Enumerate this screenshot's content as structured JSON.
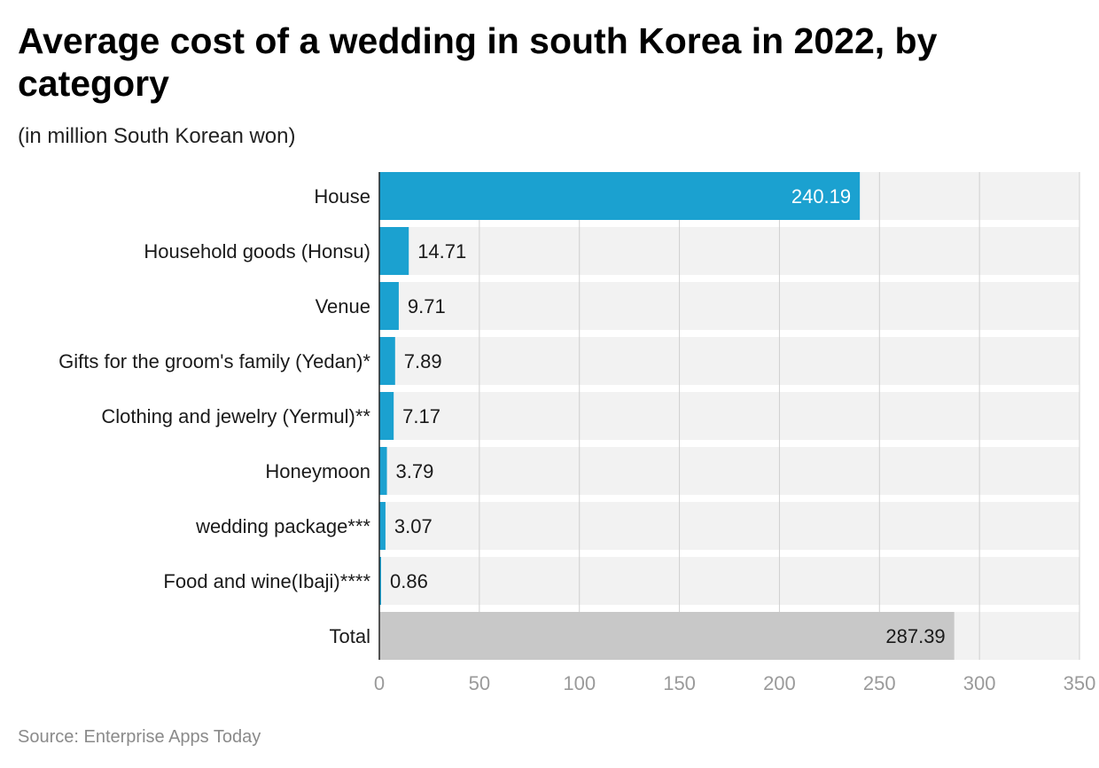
{
  "title": "Average cost of a wedding in south Korea in 2022, by category",
  "subtitle": "(in million South Korean won)",
  "source": "Source: Enterprise Apps Today",
  "colors": {
    "bar": "#1ba1d0",
    "total_bar": "#c8c8c8",
    "track": "#f2f2f2",
    "grid": "#d0d0d0",
    "axis_text": "#9a9a9a"
  },
  "chart_data": {
    "type": "bar",
    "orientation": "horizontal",
    "categories": [
      "House",
      "Household goods (Honsu)",
      "Venue",
      "Gifts for the groom's family (Yedan)*",
      "Clothing and jewelry (Yermul)**",
      "Honeymoon",
      "wedding package***",
      "Food and wine(Ibaji)****",
      "Total"
    ],
    "values": [
      240.19,
      14.71,
      9.71,
      7.89,
      7.17,
      3.79,
      3.07,
      0.86,
      287.39
    ],
    "value_labels": [
      "240.19",
      "14.71",
      "9.71",
      "7.89",
      "7.17",
      "3.79",
      "3.07",
      "0.86",
      "287.39"
    ],
    "xlim": [
      0,
      350
    ],
    "ticks": [
      0,
      50,
      100,
      150,
      200,
      250,
      300,
      350
    ],
    "tick_labels": [
      "0",
      "50",
      "100",
      "150",
      "200",
      "250",
      "300",
      "350"
    ],
    "grid": true,
    "xlabel": "",
    "ylabel": ""
  }
}
